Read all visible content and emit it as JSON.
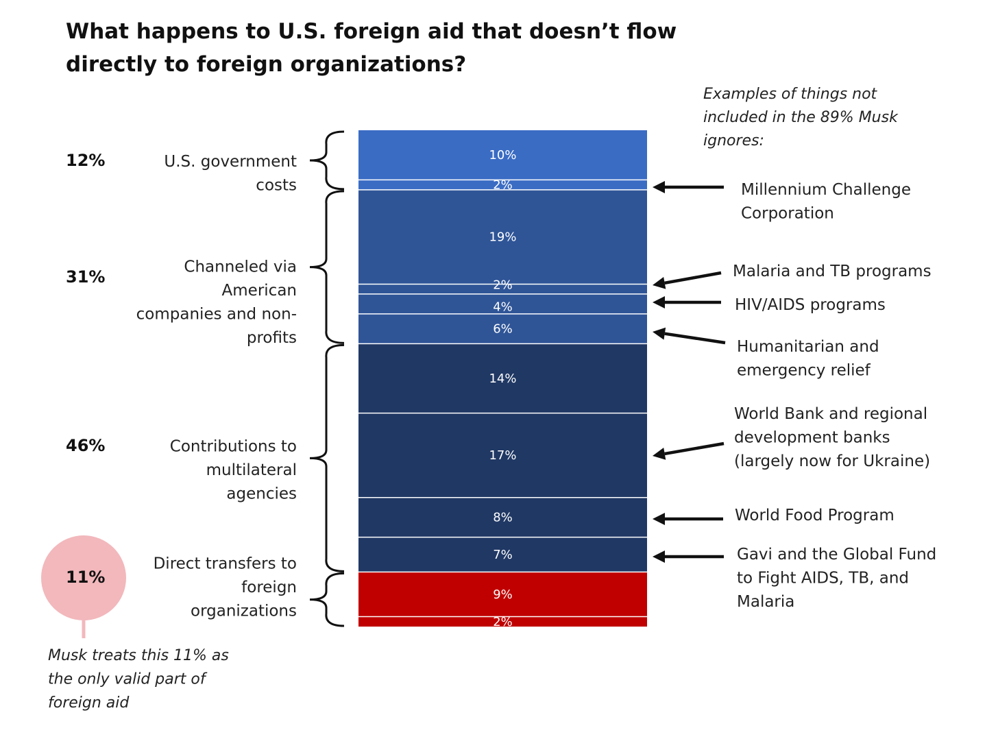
{
  "chart_data": {
    "type": "bar",
    "title": "What happens to U.S. foreign aid that doesn’t flow directly to foreign organizations?",
    "unit": "%",
    "segments": [
      {
        "label": "10%",
        "value": 10,
        "group": "gov",
        "color": "#3a6cc4"
      },
      {
        "label": "2%",
        "value": 2,
        "group": "gov",
        "color": "#3a6cc4"
      },
      {
        "label": "19%",
        "value": 19,
        "group": "channeled",
        "color": "#2f5597"
      },
      {
        "label": "2%",
        "value": 2,
        "group": "channeled",
        "color": "#2f5597"
      },
      {
        "label": "4%",
        "value": 4,
        "group": "channeled",
        "color": "#2f5597"
      },
      {
        "label": "6%",
        "value": 6,
        "group": "channeled",
        "color": "#2f5597"
      },
      {
        "label": "14%",
        "value": 14,
        "group": "multilateral",
        "color": "#203864"
      },
      {
        "label": "17%",
        "value": 17,
        "group": "multilateral",
        "color": "#203864"
      },
      {
        "label": "8%",
        "value": 8,
        "group": "multilateral",
        "color": "#203864"
      },
      {
        "label": "7%",
        "value": 7,
        "group": "multilateral",
        "color": "#203864"
      },
      {
        "label": "9%",
        "value": 9,
        "group": "direct",
        "color": "#c00000"
      },
      {
        "label": "2%",
        "value": 2,
        "group": "direct",
        "color": "#c00000"
      }
    ],
    "groups": [
      {
        "id": "gov",
        "total_label": "12%",
        "label_lines": [
          "U.S. government",
          "costs"
        ]
      },
      {
        "id": "channeled",
        "total_label": "31%",
        "label_lines": [
          "Channeled via",
          "American",
          "companies and non-",
          "profits"
        ]
      },
      {
        "id": "multilateral",
        "total_label": "46%",
        "label_lines": [
          "Contributions to",
          "multilateral",
          "agencies"
        ]
      },
      {
        "id": "direct",
        "total_label": "11%",
        "label_lines": [
          "Direct transfers to",
          "foreign",
          "organizations"
        ],
        "highlight_color": "#f2b8bc"
      }
    ],
    "annotations_header": [
      "Examples of things not",
      "included in the 89% Musk",
      "ignores:"
    ],
    "annotations": [
      {
        "segment_index": 1,
        "lines": [
          "Millennium Challenge",
          "Corporation"
        ]
      },
      {
        "segment_index": 3,
        "lines": [
          "Malaria and TB programs"
        ]
      },
      {
        "segment_index": 4,
        "lines": [
          "HIV/AIDS programs"
        ]
      },
      {
        "segment_index": 5,
        "lines": [
          "Humanitarian and",
          "emergency relief"
        ]
      },
      {
        "segment_index": 7,
        "lines": [
          "World Bank and regional",
          "development banks",
          "(largely now for Ukraine)"
        ]
      },
      {
        "segment_index": 8,
        "lines": [
          "World Food Program"
        ]
      },
      {
        "segment_index": 9,
        "lines": [
          "Gavi and the Global Fund",
          "to Fight AIDS, TB, and",
          "Malaria"
        ]
      }
    ],
    "footnote": [
      "Musk treats this 11% as",
      "the only valid part of",
      "foreign aid"
    ]
  }
}
